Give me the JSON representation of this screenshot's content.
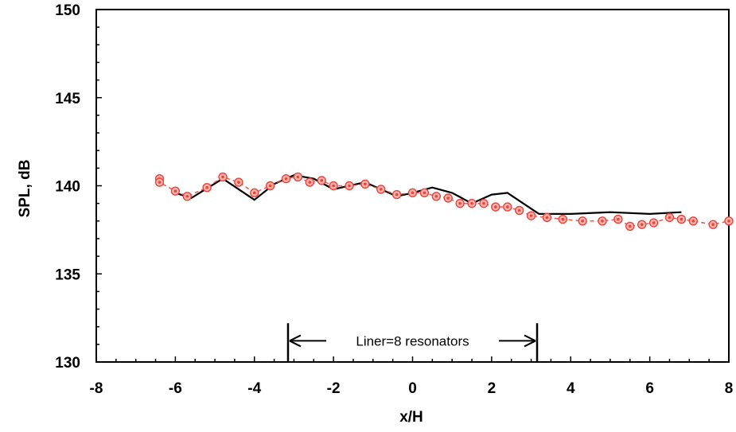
{
  "chart_data": {
    "type": "line",
    "title": "",
    "xlabel": "x/H",
    "ylabel": "SPL, dB",
    "xlim": [
      -8,
      8
    ],
    "ylim": [
      130,
      150
    ],
    "x_ticks": [
      -8,
      -6,
      -4,
      -2,
      0,
      2,
      4,
      6,
      8
    ],
    "y_ticks": [
      130,
      135,
      140,
      145,
      150
    ],
    "grid": false,
    "legend": "none",
    "series": [
      {
        "style": "solid-line",
        "color": "#000000",
        "points": [
          [
            -6.0,
            139.6
          ],
          [
            -5.6,
            139.3
          ],
          [
            -4.8,
            140.4
          ],
          [
            -4.0,
            139.2
          ],
          [
            -3.5,
            140.1
          ],
          [
            -3.0,
            140.6
          ],
          [
            -2.5,
            140.4
          ],
          [
            -2.0,
            139.8
          ],
          [
            -1.2,
            140.2
          ],
          [
            -0.4,
            139.4
          ],
          [
            0.0,
            139.6
          ],
          [
            0.5,
            139.9
          ],
          [
            1.0,
            139.6
          ],
          [
            1.5,
            139.0
          ],
          [
            2.0,
            139.5
          ],
          [
            2.4,
            139.6
          ],
          [
            2.8,
            139.0
          ],
          [
            3.2,
            138.4
          ],
          [
            4.0,
            138.4
          ],
          [
            5.0,
            138.5
          ],
          [
            6.0,
            138.4
          ],
          [
            6.8,
            138.5
          ]
        ]
      },
      {
        "style": "dashed-line-with-markers",
        "color": "#e8453c",
        "points": [
          [
            -6.4,
            140.4
          ],
          [
            -6.4,
            140.2
          ],
          [
            -6.0,
            139.7
          ],
          [
            -5.7,
            139.4
          ],
          [
            -5.2,
            139.9
          ],
          [
            -4.8,
            140.5
          ],
          [
            -4.4,
            140.2
          ],
          [
            -4.0,
            139.6
          ],
          [
            -3.6,
            140.0
          ],
          [
            -3.2,
            140.4
          ],
          [
            -2.9,
            140.5
          ],
          [
            -2.6,
            140.2
          ],
          [
            -2.3,
            140.3
          ],
          [
            -2.0,
            140.0
          ],
          [
            -1.6,
            140.0
          ],
          [
            -1.2,
            140.1
          ],
          [
            -0.8,
            139.8
          ],
          [
            -0.4,
            139.5
          ],
          [
            0.0,
            139.6
          ],
          [
            0.3,
            139.6
          ],
          [
            0.6,
            139.4
          ],
          [
            0.9,
            139.3
          ],
          [
            1.2,
            139.0
          ],
          [
            1.5,
            139.0
          ],
          [
            1.8,
            139.0
          ],
          [
            2.1,
            138.8
          ],
          [
            2.4,
            138.8
          ],
          [
            2.7,
            138.6
          ],
          [
            3.0,
            138.3
          ],
          [
            3.4,
            138.2
          ],
          [
            3.8,
            138.1
          ],
          [
            4.3,
            138.0
          ],
          [
            4.8,
            138.0
          ],
          [
            5.2,
            138.1
          ],
          [
            5.5,
            137.7
          ],
          [
            5.8,
            137.8
          ],
          [
            6.1,
            137.9
          ],
          [
            6.5,
            138.2
          ],
          [
            6.8,
            138.1
          ],
          [
            7.1,
            138.0
          ],
          [
            7.6,
            137.8
          ],
          [
            8.0,
            138.0
          ]
        ]
      }
    ],
    "annotation": {
      "text": "Liner=8 resonators",
      "x_start": -3.15,
      "x_end": 3.15,
      "y_bracket_bottom": 130,
      "y_bracket_top": 132.2,
      "y_arrow": 131.2
    }
  }
}
